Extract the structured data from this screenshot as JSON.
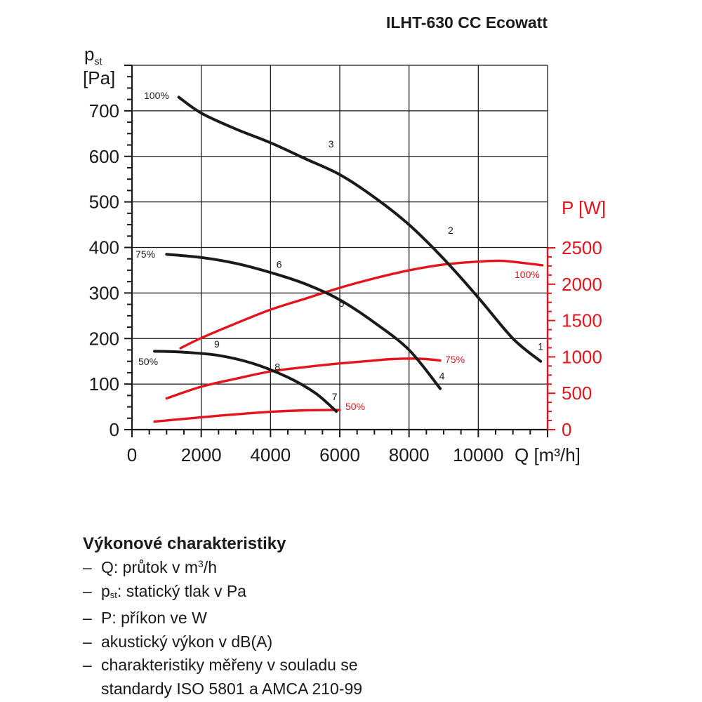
{
  "chart_data": {
    "type": "line",
    "title": "ILHT-630 CC Ecowatt",
    "xlabel": "Q [m³/h]",
    "x_ticks": [
      0,
      2000,
      4000,
      6000,
      8000,
      10000
    ],
    "xlim": [
      0,
      12000
    ],
    "ylabel_left": "pst [Pa]",
    "ylabel_left_main": "p",
    "ylabel_left_sub": "st",
    "ylabel_left_unit": "[Pa]",
    "y_left_ticks": [
      0,
      100,
      200,
      300,
      400,
      500,
      600,
      700
    ],
    "ylim_left": [
      0,
      800
    ],
    "ylabel_right": "P [W]",
    "y_right_ticks": [
      0,
      500,
      1000,
      1500,
      2000,
      2500
    ],
    "ylim_right": [
      0,
      2500
    ],
    "grid": true,
    "colors": {
      "pressure": "#1a1a1a",
      "power": "#e3141b",
      "grid": "#1a1a1a"
    },
    "pressure_series": [
      {
        "name": "100%",
        "axis": "left",
        "points": [
          [
            1350,
            730
          ],
          [
            2000,
            695
          ],
          [
            3000,
            660
          ],
          [
            4000,
            630
          ],
          [
            5000,
            595
          ],
          [
            6000,
            560
          ],
          [
            7000,
            510
          ],
          [
            8000,
            450
          ],
          [
            9000,
            375
          ],
          [
            10000,
            290
          ],
          [
            11000,
            200
          ],
          [
            11800,
            150
          ]
        ]
      },
      {
        "name": "75%",
        "axis": "left",
        "points": [
          [
            1000,
            385
          ],
          [
            2000,
            378
          ],
          [
            3000,
            365
          ],
          [
            4000,
            345
          ],
          [
            5000,
            320
          ],
          [
            6000,
            285
          ],
          [
            7000,
            235
          ],
          [
            8000,
            175
          ],
          [
            8900,
            90
          ]
        ]
      },
      {
        "name": "50%",
        "axis": "left",
        "points": [
          [
            650,
            172
          ],
          [
            1500,
            170
          ],
          [
            2500,
            163
          ],
          [
            3500,
            145
          ],
          [
            4500,
            115
          ],
          [
            5300,
            80
          ],
          [
            5900,
            40
          ]
        ]
      }
    ],
    "power_series": [
      {
        "name": "100%",
        "axis": "right",
        "points": [
          [
            1400,
            1120
          ],
          [
            2000,
            1260
          ],
          [
            3000,
            1460
          ],
          [
            4000,
            1650
          ],
          [
            5000,
            1800
          ],
          [
            6000,
            1950
          ],
          [
            7000,
            2080
          ],
          [
            8000,
            2190
          ],
          [
            9000,
            2270
          ],
          [
            10000,
            2310
          ],
          [
            10700,
            2320
          ],
          [
            11500,
            2280
          ],
          [
            11850,
            2260
          ]
        ]
      },
      {
        "name": "75%",
        "axis": "right",
        "points": [
          [
            1000,
            430
          ],
          [
            2000,
            590
          ],
          [
            3000,
            700
          ],
          [
            4000,
            800
          ],
          [
            5000,
            860
          ],
          [
            6000,
            910
          ],
          [
            7000,
            950
          ],
          [
            7500,
            970
          ],
          [
            8300,
            975
          ],
          [
            8900,
            950
          ]
        ]
      },
      {
        "name": "50%",
        "axis": "right",
        "points": [
          [
            650,
            110
          ],
          [
            2000,
            170
          ],
          [
            3000,
            210
          ],
          [
            4000,
            245
          ],
          [
            5000,
            265
          ],
          [
            6000,
            270
          ]
        ]
      }
    ],
    "curve_labels": [
      {
        "text": "100%",
        "color": "pressure"
      },
      {
        "text": "75%",
        "color": "pressure"
      },
      {
        "text": "50%",
        "color": "pressure"
      },
      {
        "text": "100%",
        "color": "power"
      },
      {
        "text": "75%",
        "color": "power"
      },
      {
        "text": "50%",
        "color": "power"
      }
    ],
    "point_labels": [
      {
        "text": "1",
        "x": 11800,
        "y": 175
      },
      {
        "text": "2",
        "x": 9200,
        "y": 430
      },
      {
        "text": "3",
        "x": 5750,
        "y": 620
      },
      {
        "text": "4",
        "x": 8950,
        "y": 110
      },
      {
        "text": "5",
        "x": 6050,
        "y": 270
      },
      {
        "text": "6",
        "x": 4250,
        "y": 355
      },
      {
        "text": "7",
        "x": 5850,
        "y": 65
      },
      {
        "text": "8",
        "x": 4200,
        "y": 130
      },
      {
        "text": "9",
        "x": 2450,
        "y": 180
      }
    ]
  },
  "legend": {
    "title": "Výkonové charakteristiky",
    "dash": "–",
    "items": [
      {
        "pre": "Q: průtok v m",
        "sup": "3",
        "post": "/h"
      },
      {
        "pre": "p",
        "sub": "st",
        "post": ": statický tlak v Pa"
      },
      {
        "pre": "P: příkon ve W"
      },
      {
        "pre": "akustický výkon v dB(A)"
      },
      {
        "pre": "charakteristiky měřeny v souladu se"
      }
    ],
    "continuation": "standardy ISO 5801 a AMCA 210-99"
  }
}
